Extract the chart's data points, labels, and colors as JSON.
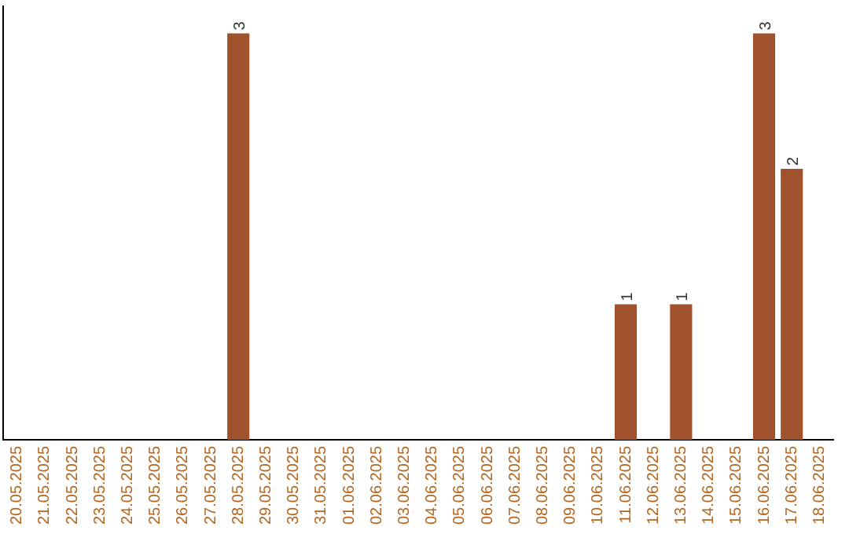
{
  "chart_data": {
    "type": "bar",
    "categories": [
      "20.05.2025",
      "21.05.2025",
      "22.05.2025",
      "23.05.2025",
      "24.05.2025",
      "25.05.2025",
      "26.05.2025",
      "27.05.2025",
      "28.05.2025",
      "29.05.2025",
      "30.05.2025",
      "31.05.2025",
      "01.06.2025",
      "02.06.2025",
      "03.06.2025",
      "04.06.2025",
      "05.06.2025",
      "06.06.2025",
      "07.06.2025",
      "08.06.2025",
      "09.06.2025",
      "10.06.2025",
      "11.06.2025",
      "12.06.2025",
      "13.06.2025",
      "14.06.2025",
      "15.06.2025",
      "16.06.2025",
      "17.06.2025",
      "18.06.2025"
    ],
    "values": [
      0,
      0,
      0,
      0,
      0,
      0,
      0,
      0,
      3,
      0,
      0,
      0,
      0,
      0,
      0,
      0,
      0,
      0,
      0,
      0,
      0,
      0,
      1,
      0,
      1,
      0,
      0,
      3,
      2,
      0
    ],
    "value_labels": [
      null,
      null,
      null,
      null,
      null,
      null,
      null,
      null,
      "3",
      null,
      null,
      null,
      null,
      null,
      null,
      null,
      null,
      null,
      null,
      null,
      null,
      null,
      "1",
      null,
      "1",
      null,
      null,
      "3",
      "2",
      null
    ],
    "color": "#a0522d",
    "ylim": [
      0,
      3.2
    ],
    "tick_labels": "x",
    "grid": false,
    "legend": false
  }
}
